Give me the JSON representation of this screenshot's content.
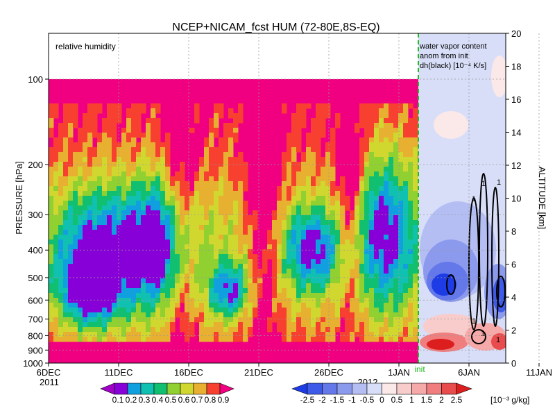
{
  "chart_data": {
    "type": "heatmap",
    "title": "NCEP+NICAM_fcst HUM (72-80E,8S-EQ)",
    "time_axis": {
      "ticks": [
        "6DEC",
        "11DEC",
        "16DEC",
        "21DEC",
        "26DEC",
        "1JAN",
        "6JAN",
        "11JAN"
      ],
      "year_labels": [
        "2011",
        "2012"
      ],
      "start": "6DEC2011",
      "end": "12JAN2012",
      "init_label": "init",
      "init_date": "4JAN2012"
    },
    "pressure_axis": {
      "label": "PRESSURE [hPa]",
      "ticks": [
        100,
        200,
        300,
        400,
        500,
        600,
        700,
        800,
        900,
        1000
      ],
      "scale": "log",
      "range": [
        1000,
        100
      ]
    },
    "altitude_axis": {
      "label": "ALTITUDE [km]",
      "ticks": [
        0,
        2,
        4,
        6,
        8,
        10,
        12,
        14,
        16,
        18,
        20
      ],
      "range": [
        0,
        20
      ]
    },
    "left_panel": {
      "label": "relative humidity",
      "levels": [
        0.1,
        0.2,
        0.3,
        0.4,
        0.5,
        0.6,
        0.7,
        0.8,
        0.9
      ],
      "colors": [
        "#8800d8",
        "#10a0e0",
        "#10c0b0",
        "#10c070",
        "#90d030",
        "#d0d830",
        "#e8b030",
        "#f84030",
        "#f00080"
      ],
      "top_pressure": 100,
      "approx_min_rh": 0.3,
      "approx_surface_rh": 0.9
    },
    "right_panel": {
      "label_lines": [
        "water vapor content",
        "anom from init",
        "dh(black) [10⁻⁴ K/s]"
      ],
      "contour_label": "1",
      "contour_value": 1,
      "shading": "water vapor content anomaly"
    },
    "water_vapor_colorbar": {
      "levels": [
        "-2.5",
        "-2",
        "-1.5",
        "-1",
        "-0.5",
        "0",
        "0.5",
        "1",
        "1.5",
        "2",
        "2.5"
      ],
      "unit": "[10⁻³ g/kg]",
      "colors": [
        "#1e3ce6",
        "#3d5ae8",
        "#6478ea",
        "#8c9aee",
        "#b4bef3",
        "#d8def8",
        "#fbe8e8",
        "#f9cccc",
        "#f6a9a9",
        "#f07e7e",
        "#e84c4c",
        "#dc1e1e"
      ]
    },
    "rh_colorbar": {
      "labels": [
        "0.1",
        "0.2",
        "0.3",
        "0.4",
        "0.5",
        "0.6",
        "0.7",
        "0.8",
        "0.9"
      ],
      "colors": [
        "#a000c8",
        "#8800d8",
        "#10a0e0",
        "#10c0b0",
        "#10c070",
        "#90d030",
        "#d0d830",
        "#e8b030",
        "#f84030",
        "#f00080"
      ]
    },
    "grid": true
  }
}
